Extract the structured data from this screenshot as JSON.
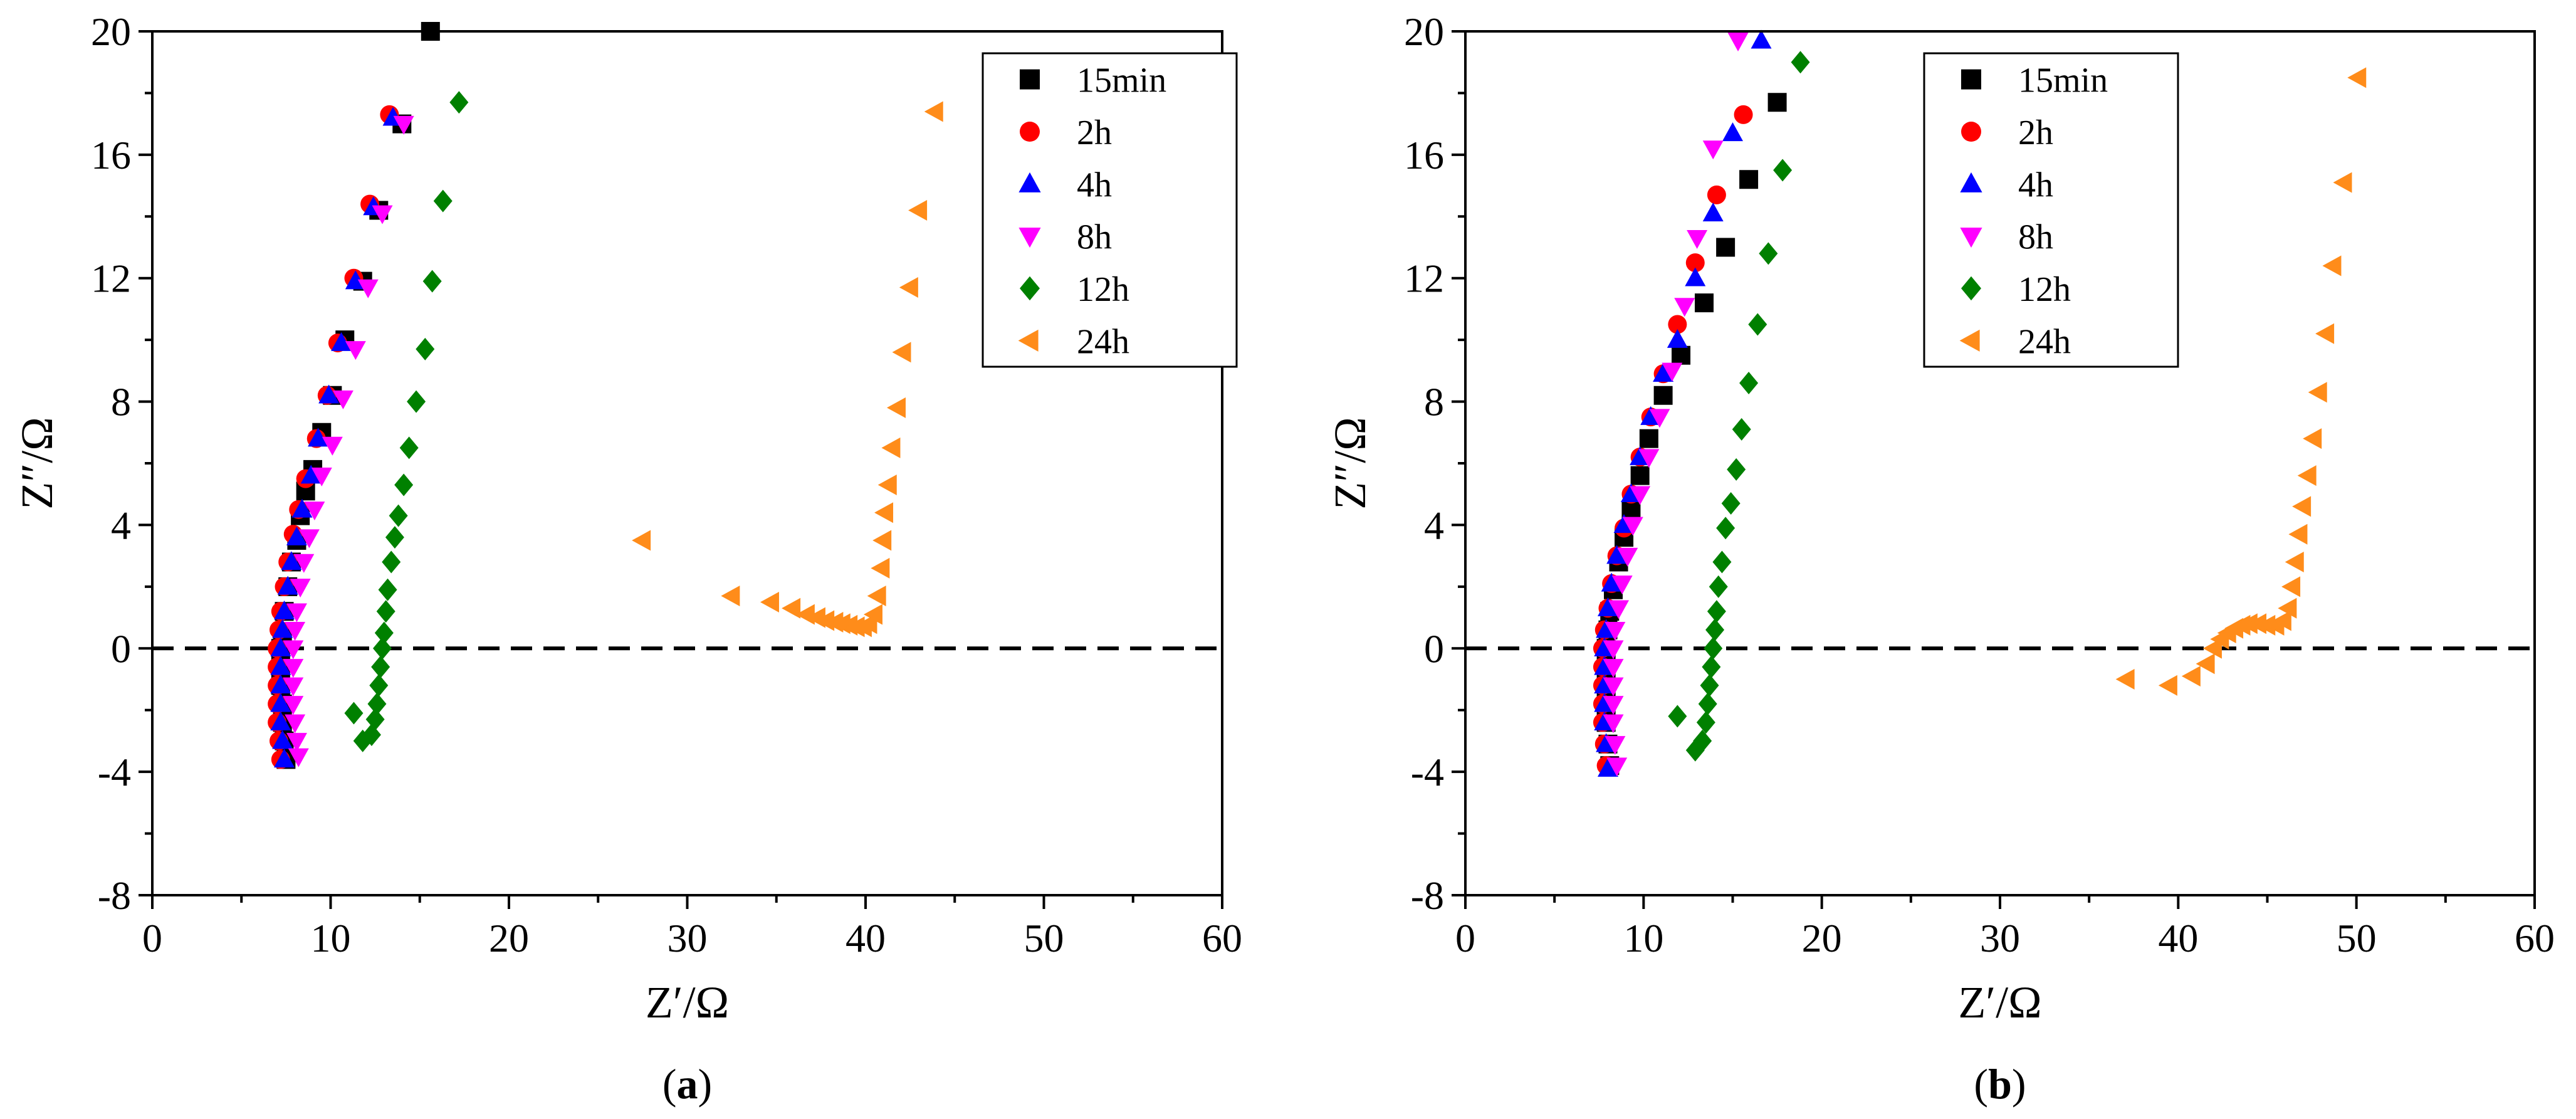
{
  "chart_data": [
    {
      "type": "scatter",
      "panel_label": "(a)",
      "xlabel": "Z′/Ω",
      "ylabel": "Z″/Ω",
      "xlim": [
        0,
        60
      ],
      "ylim": [
        -8,
        20
      ],
      "xticks": [
        0,
        10,
        20,
        30,
        40,
        50,
        60
      ],
      "yticks": [
        -8,
        -4,
        0,
        4,
        8,
        12,
        16,
        20
      ],
      "reference_line": {
        "y": 0,
        "style": "dashed"
      },
      "legend_position": "top-right",
      "series": [
        {
          "name": "15min",
          "marker": "square",
          "color": "#000000",
          "points": [
            [
              7.5,
              -3.6
            ],
            [
              7.4,
              -3
            ],
            [
              7.3,
              -2.4
            ],
            [
              7.3,
              -1.8
            ],
            [
              7.2,
              -1.2
            ],
            [
              7.2,
              -0.6
            ],
            [
              7.2,
              0
            ],
            [
              7.3,
              0.5
            ],
            [
              7.4,
              1.2
            ],
            [
              7.6,
              2
            ],
            [
              7.8,
              2.8
            ],
            [
              8.1,
              3.5
            ],
            [
              8.3,
              4.3
            ],
            [
              8.6,
              5.1
            ],
            [
              9,
              5.8
            ],
            [
              9.5,
              7
            ],
            [
              10.1,
              8.2
            ],
            [
              10.8,
              10
            ],
            [
              11.8,
              11.9
            ],
            [
              12.7,
              14.2
            ],
            [
              14,
              17
            ],
            [
              15.6,
              20
            ]
          ]
        },
        {
          "name": "2h",
          "marker": "circle",
          "color": "#ff0000",
          "points": [
            [
              7.2,
              -3.6
            ],
            [
              7.1,
              -3
            ],
            [
              7,
              -2.4
            ],
            [
              7,
              -1.8
            ],
            [
              7,
              -1.2
            ],
            [
              7,
              -0.6
            ],
            [
              7,
              0
            ],
            [
              7.1,
              0.6
            ],
            [
              7.2,
              1.2
            ],
            [
              7.4,
              2
            ],
            [
              7.6,
              2.8
            ],
            [
              7.9,
              3.7
            ],
            [
              8.2,
              4.5
            ],
            [
              8.6,
              5.5
            ],
            [
              9.2,
              6.8
            ],
            [
              9.8,
              8.2
            ],
            [
              10.4,
              9.9
            ],
            [
              11.3,
              12
            ],
            [
              12.2,
              14.4
            ],
            [
              13.3,
              17.3
            ]
          ]
        },
        {
          "name": "4h",
          "marker": "triangle-up",
          "color": "#0000ff",
          "points": [
            [
              7.4,
              -3.6
            ],
            [
              7.3,
              -3
            ],
            [
              7.2,
              -2.4
            ],
            [
              7.2,
              -1.8
            ],
            [
              7.2,
              -1.2
            ],
            [
              7.2,
              -0.6
            ],
            [
              7.2,
              0
            ],
            [
              7.3,
              0.6
            ],
            [
              7.4,
              1.2
            ],
            [
              7.6,
              2
            ],
            [
              7.8,
              2.8
            ],
            [
              8.1,
              3.6
            ],
            [
              8.4,
              4.5
            ],
            [
              8.9,
              5.6
            ],
            [
              9.3,
              6.8
            ],
            [
              9.9,
              8.2
            ],
            [
              10.6,
              9.9
            ],
            [
              11.4,
              11.9
            ],
            [
              12.4,
              14.3
            ],
            [
              13.5,
              17.2
            ]
          ]
        },
        {
          "name": "8h",
          "marker": "triangle-down",
          "color": "#ff00ff",
          "points": [
            [
              8.2,
              -3.5
            ],
            [
              8.1,
              -3
            ],
            [
              8,
              -2.4
            ],
            [
              7.9,
              -1.8
            ],
            [
              7.9,
              -1.2
            ],
            [
              7.9,
              -0.6
            ],
            [
              7.9,
              0
            ],
            [
              8,
              0.6
            ],
            [
              8.1,
              1.2
            ],
            [
              8.3,
              2
            ],
            [
              8.5,
              2.8
            ],
            [
              8.8,
              3.6
            ],
            [
              9.1,
              4.5
            ],
            [
              9.5,
              5.6
            ],
            [
              10.1,
              6.6
            ],
            [
              10.7,
              8.1
            ],
            [
              11.4,
              9.7
            ],
            [
              12.1,
              11.7
            ],
            [
              12.9,
              14.1
            ],
            [
              14.1,
              17
            ]
          ]
        },
        {
          "name": "12h",
          "marker": "diamond",
          "color": "#008000",
          "points": [
            [
              11.3,
              -2.1
            ],
            [
              11.8,
              -3
            ],
            [
              12.3,
              -2.8
            ],
            [
              12.5,
              -2.3
            ],
            [
              12.6,
              -1.8
            ],
            [
              12.7,
              -1.2
            ],
            [
              12.8,
              -0.6
            ],
            [
              12.9,
              0
            ],
            [
              13,
              0.5
            ],
            [
              13.1,
              1.2
            ],
            [
              13.2,
              1.9
            ],
            [
              13.4,
              2.8
            ],
            [
              13.6,
              3.6
            ],
            [
              13.8,
              4.3
            ],
            [
              14.1,
              5.3
            ],
            [
              14.4,
              6.5
            ],
            [
              14.8,
              8
            ],
            [
              15.3,
              9.7
            ],
            [
              15.7,
              11.9
            ],
            [
              16.3,
              14.5
            ],
            [
              17.2,
              17.7
            ]
          ]
        },
        {
          "name": "24h",
          "marker": "triangle-left",
          "color": "#ff8c1a",
          "points": [
            [
              27.5,
              3.5
            ],
            [
              32.5,
              1.7
            ],
            [
              34.7,
              1.5
            ],
            [
              35.9,
              1.3
            ],
            [
              36.7,
              1.1
            ],
            [
              37.3,
              1
            ],
            [
              37.8,
              0.9
            ],
            [
              38.3,
              0.85
            ],
            [
              38.7,
              0.8
            ],
            [
              39.1,
              0.75
            ],
            [
              39.5,
              0.7
            ],
            [
              39.9,
              0.7
            ],
            [
              40.2,
              0.8
            ],
            [
              40.5,
              1.1
            ],
            [
              40.7,
              1.7
            ],
            [
              40.9,
              2.6
            ],
            [
              41,
              3.5
            ],
            [
              41.1,
              4.4
            ],
            [
              41.3,
              5.3
            ],
            [
              41.5,
              6.5
            ],
            [
              41.8,
              7.8
            ],
            [
              42.1,
              9.6
            ],
            [
              42.5,
              11.7
            ],
            [
              43,
              14.2
            ],
            [
              43.9,
              17.4
            ]
          ]
        }
      ]
    },
    {
      "type": "scatter",
      "panel_label": "(b)",
      "xlabel": "Z′/Ω",
      "ylabel": "Z″/Ω",
      "xlim": [
        0,
        60
      ],
      "ylim": [
        -8,
        20
      ],
      "xticks": [
        0,
        10,
        20,
        30,
        40,
        50,
        60
      ],
      "yticks": [
        -8,
        -4,
        0,
        4,
        8,
        12,
        16,
        20
      ],
      "reference_line": {
        "y": 0,
        "style": "dashed"
      },
      "legend_position": "top-center",
      "series": [
        {
          "name": "15min",
          "marker": "square",
          "color": "#000000",
          "points": [
            [
              8.1,
              -3.8
            ],
            [
              8,
              -3.1
            ],
            [
              7.9,
              -2.4
            ],
            [
              7.9,
              -1.8
            ],
            [
              7.9,
              -1.2
            ],
            [
              7.9,
              -0.6
            ],
            [
              7.9,
              0
            ],
            [
              8,
              0.6
            ],
            [
              8.1,
              1.2
            ],
            [
              8.3,
              1.9
            ],
            [
              8.6,
              2.8
            ],
            [
              8.9,
              3.6
            ],
            [
              9.3,
              4.5
            ],
            [
              9.8,
              5.6
            ],
            [
              10.3,
              6.8
            ],
            [
              11.1,
              8.2
            ],
            [
              12.1,
              9.5
            ],
            [
              13.4,
              11.2
            ],
            [
              14.6,
              13
            ],
            [
              15.9,
              15.2
            ],
            [
              17.5,
              17.7
            ]
          ]
        },
        {
          "name": "2h",
          "marker": "circle",
          "color": "#ff0000",
          "points": [
            [
              7.9,
              -3.8
            ],
            [
              7.8,
              -3.1
            ],
            [
              7.7,
              -2.4
            ],
            [
              7.7,
              -1.8
            ],
            [
              7.7,
              -1.2
            ],
            [
              7.7,
              -0.6
            ],
            [
              7.7,
              0
            ],
            [
              7.8,
              0.6
            ],
            [
              8,
              1.3
            ],
            [
              8.2,
              2.1
            ],
            [
              8.5,
              3
            ],
            [
              8.9,
              3.9
            ],
            [
              9.3,
              5
            ],
            [
              9.8,
              6.2
            ],
            [
              10.4,
              7.5
            ],
            [
              11.1,
              8.9
            ],
            [
              11.9,
              10.5
            ],
            [
              12.9,
              12.5
            ],
            [
              14.1,
              14.7
            ],
            [
              15.6,
              17.3
            ]
          ]
        },
        {
          "name": "4h",
          "marker": "triangle-up",
          "color": "#0000ff",
          "points": [
            [
              8,
              -3.9
            ],
            [
              7.9,
              -3.1
            ],
            [
              7.8,
              -2.4
            ],
            [
              7.8,
              -1.8
            ],
            [
              7.8,
              -1.2
            ],
            [
              7.8,
              -0.6
            ],
            [
              7.8,
              0
            ],
            [
              7.9,
              0.6
            ],
            [
              8,
              1.3
            ],
            [
              8.2,
              2.1
            ],
            [
              8.5,
              3
            ],
            [
              8.9,
              4
            ],
            [
              9.3,
              5
            ],
            [
              9.8,
              6.2
            ],
            [
              10.4,
              7.5
            ],
            [
              11.1,
              8.9
            ],
            [
              11.9,
              10
            ],
            [
              12.9,
              12
            ],
            [
              13.9,
              14.1
            ],
            [
              15,
              16.7
            ],
            [
              16.6,
              19.7
            ]
          ]
        },
        {
          "name": "8h",
          "marker": "triangle-down",
          "color": "#ff00ff",
          "points": [
            [
              8.5,
              -3.8
            ],
            [
              8.4,
              -3.1
            ],
            [
              8.3,
              -2.4
            ],
            [
              8.3,
              -1.8
            ],
            [
              8.3,
              -1.2
            ],
            [
              8.3,
              -0.6
            ],
            [
              8.3,
              0
            ],
            [
              8.4,
              0.6
            ],
            [
              8.6,
              1.3
            ],
            [
              8.8,
              2.1
            ],
            [
              9.1,
              3
            ],
            [
              9.4,
              4
            ],
            [
              9.8,
              5
            ],
            [
              10.3,
              6.2
            ],
            [
              10.9,
              7.5
            ],
            [
              11.6,
              9
            ],
            [
              12.3,
              11.1
            ],
            [
              13,
              13.3
            ],
            [
              13.9,
              16.2
            ],
            [
              15.3,
              19.7
            ]
          ]
        },
        {
          "name": "12h",
          "marker": "diamond",
          "color": "#008000",
          "points": [
            [
              11.9,
              -2.2
            ],
            [
              12.9,
              -3.3
            ],
            [
              13.3,
              -3
            ],
            [
              13.5,
              -2.4
            ],
            [
              13.6,
              -1.8
            ],
            [
              13.7,
              -1.2
            ],
            [
              13.8,
              -0.6
            ],
            [
              13.9,
              0
            ],
            [
              14,
              0.6
            ],
            [
              14.1,
              1.2
            ],
            [
              14.2,
              2
            ],
            [
              14.4,
              2.8
            ],
            [
              14.6,
              3.9
            ],
            [
              14.9,
              4.7
            ],
            [
              15.2,
              5.8
            ],
            [
              15.5,
              7.1
            ],
            [
              15.9,
              8.6
            ],
            [
              16.4,
              10.5
            ],
            [
              17,
              12.8
            ],
            [
              17.8,
              15.5
            ],
            [
              18.8,
              19
            ]
          ]
        },
        {
          "name": "24h",
          "marker": "triangle-left",
          "color": "#ff8c1a",
          "points": [
            [
              37.1,
              -1
            ],
            [
              39.5,
              -1.2
            ],
            [
              40.8,
              -0.9
            ],
            [
              41.6,
              -0.5
            ],
            [
              42,
              0
            ],
            [
              42.4,
              0.3
            ],
            [
              42.8,
              0.5
            ],
            [
              43.2,
              0.65
            ],
            [
              43.6,
              0.75
            ],
            [
              44,
              0.8
            ],
            [
              44.5,
              0.8
            ],
            [
              45,
              0.75
            ],
            [
              45.5,
              0.75
            ],
            [
              45.9,
              0.9
            ],
            [
              46.2,
              1.3
            ],
            [
              46.4,
              2
            ],
            [
              46.6,
              2.8
            ],
            [
              46.8,
              3.7
            ],
            [
              47,
              4.6
            ],
            [
              47.3,
              5.6
            ],
            [
              47.6,
              6.8
            ],
            [
              47.9,
              8.3
            ],
            [
              48.3,
              10.2
            ],
            [
              48.7,
              12.4
            ],
            [
              49.3,
              15.1
            ],
            [
              50.1,
              18.5
            ]
          ]
        }
      ]
    }
  ]
}
